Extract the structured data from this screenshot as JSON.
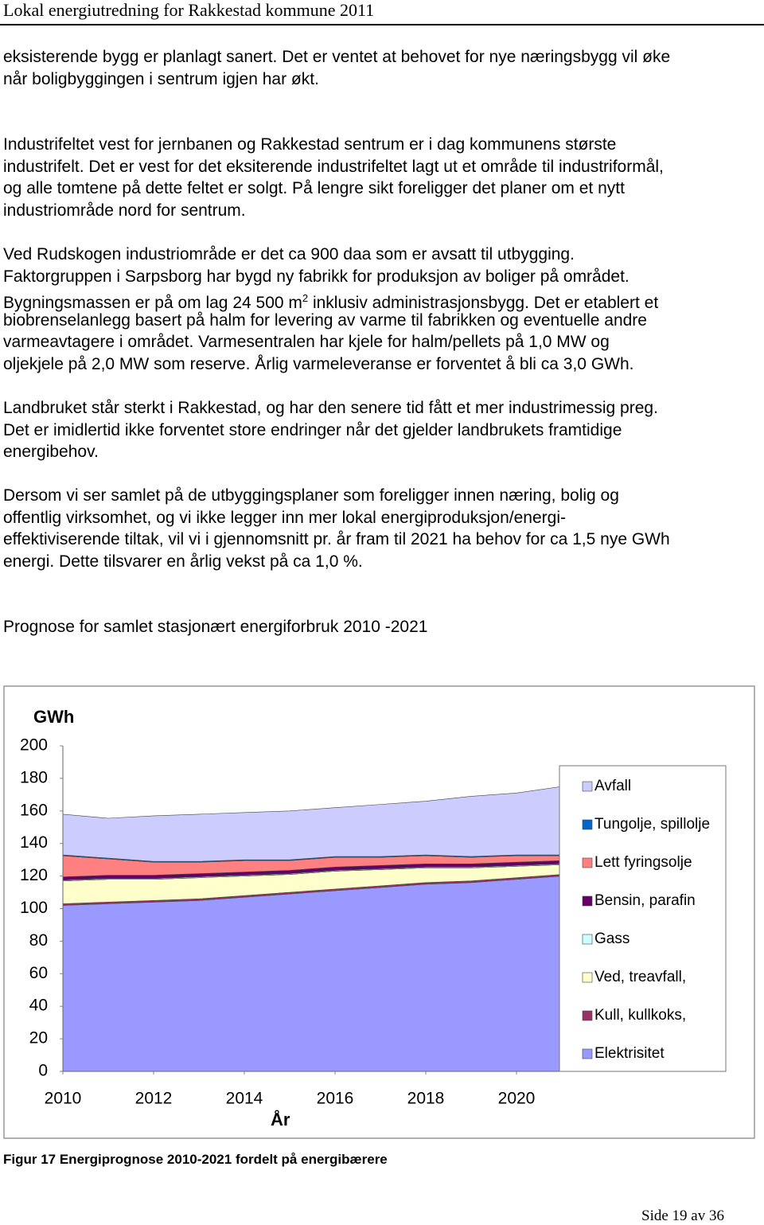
{
  "header": {
    "title": "Lokal energiutredning for Rakkestad kommune 2011"
  },
  "paragraphs": [
    [
      "eksisterende bygg er planlagt sanert. Det er ventet at behovet for nye næringsbygg vil øke",
      "når boligbyggingen i sentrum igjen har økt."
    ],
    [
      "Industrifeltet vest for jernbanen og Rakkestad sentrum er i dag kommunens største",
      "industrifelt. Det er vest for det eksiterende industrifeltet lagt ut et område til industriformål,",
      "og alle tomtene på dette feltet er solgt. På lengre sikt foreligger det planer om et nytt",
      "industriområde nord for sentrum."
    ],
    [
      "Ved Rudskogen industriområde er det ca 900 daa som er avsatt til utbygging.",
      "Faktorgruppen i Sarpsborg har bygd ny fabrikk for produksjon av boliger på området.",
      [
        "Bygningsmassen er på om lag 24 500 m",
        "2",
        " inklusiv administrasjonsbygg. Det er etablert et"
      ],
      "biobrenselanlegg basert på halm for levering av varme til fabrikken og eventuelle andre",
      "varmeavtagere i området. Varmesentralen har kjele for halm/pellets på 1,0 MW og",
      "oljekjele på 2,0 MW som reserve. Årlig varmeleveranse er forventet å bli ca 3,0 GWh."
    ],
    [
      "Landbruket står sterkt i Rakkestad, og har den senere tid fått et mer industrimessig preg.",
      "Det er imidlertid ikke forventet store endringer når det gjelder landbrukets framtidige",
      "energibehov."
    ],
    [
      "Dersom vi ser samlet på de utbyggingsplaner som foreligger innen næring, bolig og",
      "offentlig virksomhet, og vi ikke legger inn mer lokal energiproduksjon/energi-",
      "effektiviserende tiltak, vil vi i gjennomsnitt pr. år fram til 2021 ha behov for ca 1,5 nye GWh",
      "energi. Dette tilsvarer en årlig vekst på ca 1,0 %."
    ]
  ],
  "heading": "Prognose for samlet stasjonært energiforbruk 2010 -2021",
  "chart_data": {
    "type": "area",
    "stacked": true,
    "y_label": "GWh",
    "x_label": "År",
    "legend": "right",
    "x": [
      2010,
      2011,
      2012,
      2013,
      2014,
      2015,
      2016,
      2017,
      2018,
      2019,
      2020,
      2021
    ],
    "xlim": [
      2010,
      2021
    ],
    "xticks": [
      2010,
      2012,
      2014,
      2016,
      2018,
      2020
    ],
    "ylim": [
      0,
      200
    ],
    "yticks": [
      0,
      20,
      40,
      60,
      80,
      100,
      120,
      140,
      160,
      180,
      200
    ],
    "series": [
      {
        "name": "Elektrisitet",
        "color": "#9999ff",
        "values": [
          102,
          103,
          104,
          105,
          107,
          109,
          111,
          113,
          115,
          116,
          118,
          120
        ]
      },
      {
        "name": "Kull, kullkoks,",
        "color": "#993366",
        "values": [
          1,
          1,
          1,
          1,
          1,
          1,
          1,
          1,
          1,
          1,
          1,
          1
        ]
      },
      {
        "name": "Ved, treavfall,",
        "color": "#ffffcc",
        "values": [
          14,
          14,
          13,
          13,
          12,
          11,
          11,
          10,
          9,
          8,
          7,
          6
        ]
      },
      {
        "name": "Gass",
        "color": "#ccffff",
        "values": [
          0.5,
          0.5,
          0.5,
          0.5,
          0.5,
          0.5,
          0.5,
          0.5,
          0.5,
          0.5,
          0.5,
          0.5
        ]
      },
      {
        "name": "Bensin, parafin",
        "color": "#660066",
        "values": [
          2,
          2,
          2,
          2,
          2,
          2,
          2,
          2,
          2,
          2,
          2,
          2
        ]
      },
      {
        "name": "Lett fyringsolje",
        "color": "#ff8080",
        "values": [
          13,
          10,
          8,
          7,
          7,
          6,
          6,
          5,
          5,
          4,
          4,
          3
        ]
      },
      {
        "name": "Tungolje, spillolje",
        "color": "#0066cc",
        "values": [
          0.5,
          0.5,
          0.5,
          0.5,
          0.5,
          0.5,
          0.5,
          0.5,
          0.5,
          0.5,
          0.5,
          0.5
        ]
      },
      {
        "name": "Avfall",
        "color": "#ccccff",
        "values": [
          25,
          24.5,
          28,
          29,
          29,
          30,
          30,
          32,
          33,
          37,
          38,
          42
        ]
      }
    ]
  },
  "caption": "Figur 17 Energiprognose 2010-2021 fordelt på energibærere",
  "footer": "Side 19 av 36"
}
